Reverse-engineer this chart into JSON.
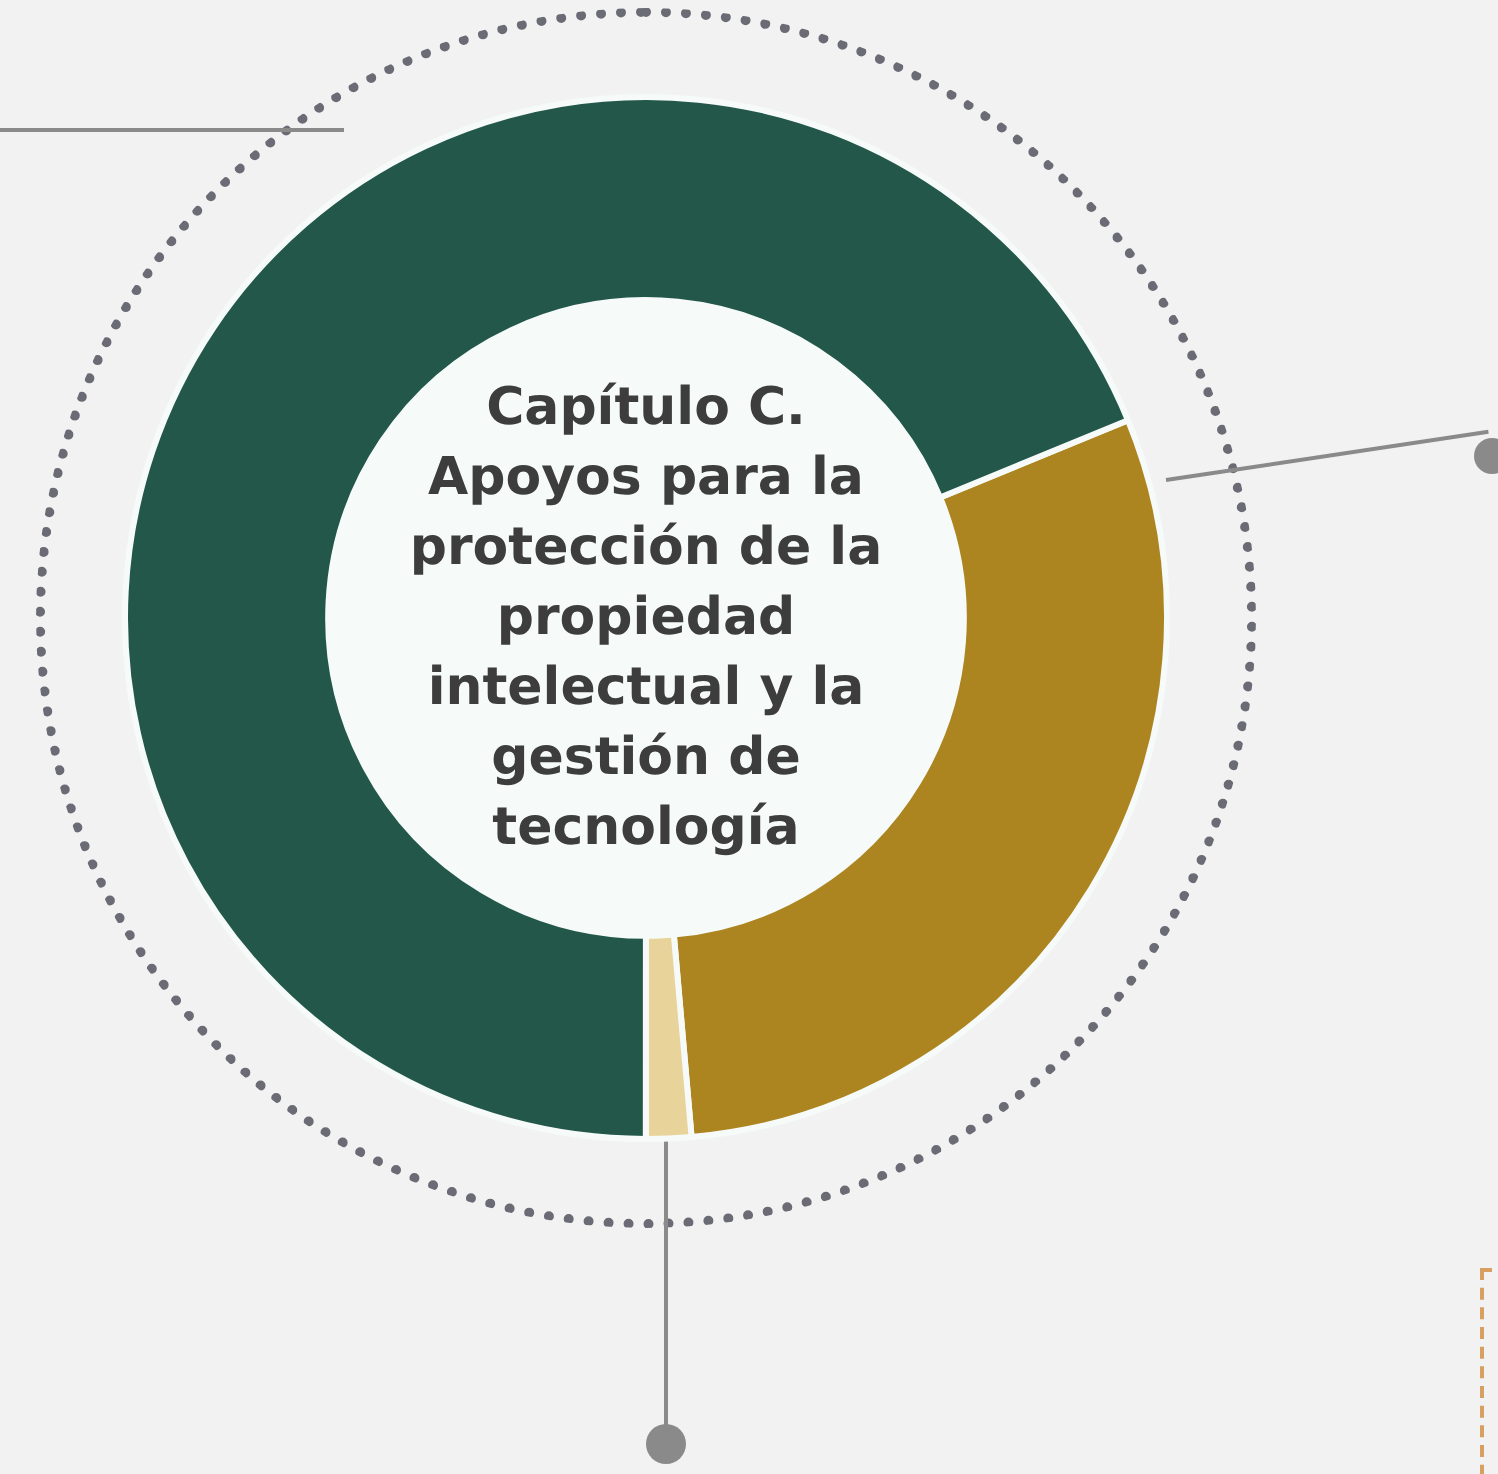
{
  "chart_data": {
    "type": "donut",
    "title": "Capítulo C. Apoyos para la protección de la propiedad intelectual y la gestión de tecnología",
    "categories": [
      null,
      null,
      null
    ],
    "values": [
      29.8,
      1.4,
      68.8
    ],
    "colors": [
      "#ad8520",
      "#e8d39a",
      "#22574a"
    ]
  }
}
